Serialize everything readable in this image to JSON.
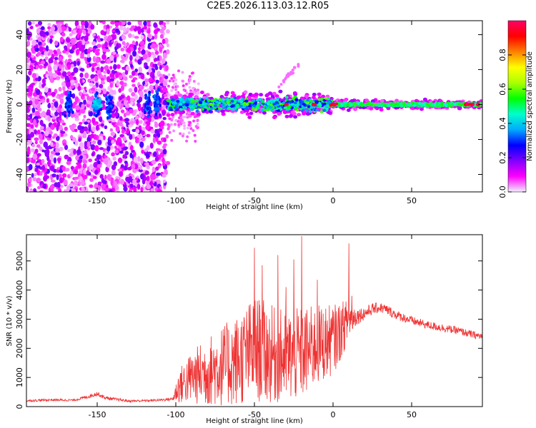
{
  "title": "C2E5.2026.113.03.12.R05",
  "colors": {
    "trace": "#ee3333",
    "frame": "#000000"
  },
  "chart_data": [
    {
      "type": "heatmap",
      "xlabel": "Height of straight line (km)",
      "ylabel": "Frequency (Hz)",
      "xlim": [
        -195,
        95
      ],
      "ylim": [
        -50,
        48
      ],
      "xticks": [
        -150,
        -100,
        -50,
        0,
        50
      ],
      "xtick_labels": [
        "-150",
        "-100",
        "-50",
        "0",
        "50"
      ],
      "yticks": [
        -40,
        -20,
        0,
        20,
        40
      ],
      "ytick_labels": [
        "-40",
        "-20",
        "0",
        "20",
        "40"
      ],
      "colorbar": {
        "label": "Normalized spectral amplitude",
        "range": [
          0,
          1
        ],
        "ticks": [
          0.0,
          0.2,
          0.4,
          0.6,
          0.8
        ],
        "tick_labels": [
          "0.0",
          "0.2",
          "0.4",
          "0.6",
          "0.8"
        ],
        "stops": [
          "#f0f0ff",
          "#ff00ff",
          "#8000ff",
          "#0000ff",
          "#00aaff",
          "#00ffcc",
          "#00ff00",
          "#aaff00",
          "#ffff00",
          "#ff8000",
          "#ff0000",
          "#ff0066"
        ]
      },
      "regions": [
        {
          "name": "diffuse noise",
          "x_range": [
            -195,
            -105
          ],
          "freq_range": [
            -50,
            48
          ],
          "amplitude": 0.12
        },
        {
          "name": "strong blob",
          "x": -150,
          "freq": 0,
          "amplitude": 0.3
        },
        {
          "name": "ridge",
          "x_range": [
            -105,
            95
          ],
          "freq": 0,
          "amplitude_start": 0.35,
          "amplitude_end": 0.45
        },
        {
          "name": "faint streak",
          "x_range": [
            -40,
            -20
          ],
          "freq_range": [
            5,
            25
          ],
          "amplitude": 0.08
        }
      ]
    },
    {
      "type": "line",
      "xlabel": "Height of straight line (km)",
      "ylabel": "SNR (10 * v/v)",
      "xlim": [
        -195,
        95
      ],
      "ylim": [
        0,
        5900
      ],
      "xticks": [
        -150,
        -100,
        -50,
        0,
        50
      ],
      "xtick_labels": [
        "-150",
        "-100",
        "-50",
        "0",
        "50"
      ],
      "yticks": [
        0,
        1000,
        2000,
        3000,
        4000,
        5000
      ],
      "ytick_labels": [
        "0",
        "1000",
        "2000",
        "3000",
        "4000",
        "5000"
      ],
      "series": [
        {
          "name": "SNR",
          "x": [
            -195,
            -180,
            -165,
            -155,
            -150,
            -145,
            -130,
            -115,
            -102,
            -98,
            -90,
            -80,
            -70,
            -60,
            -50,
            -45,
            -40,
            -30,
            -20,
            -10,
            0,
            5,
            10,
            15,
            20,
            25,
            30,
            35,
            40,
            50,
            60,
            70,
            80,
            90,
            95
          ],
          "y": [
            200,
            230,
            220,
            350,
            450,
            300,
            190,
            210,
            260,
            700,
            1000,
            1200,
            1400,
            1600,
            2000,
            1900,
            1800,
            1700,
            1800,
            2100,
            2300,
            2600,
            3000,
            3100,
            3200,
            3350,
            3400,
            3300,
            3150,
            2950,
            2800,
            2700,
            2600,
            2450,
            2400
          ],
          "spread": [
            40,
            40,
            40,
            60,
            80,
            60,
            40,
            40,
            60,
            600,
            900,
            1200,
            1400,
            1600,
            1800,
            1800,
            1700,
            1600,
            1600,
            1400,
            1200,
            1000,
            700,
            300,
            220,
            200,
            180,
            180,
            160,
            150,
            140,
            140,
            130,
            130,
            130
          ]
        }
      ],
      "spikes": [
        {
          "x": -50,
          "y": 5450
        },
        {
          "x": -45,
          "y": 4850
        },
        {
          "x": -35,
          "y": 5200
        },
        {
          "x": -30,
          "y": 4100
        },
        {
          "x": -25,
          "y": 5050
        },
        {
          "x": -20,
          "y": 5850
        },
        {
          "x": -10,
          "y": 4350
        },
        {
          "x": 10,
          "y": 5600
        },
        {
          "x": 12,
          "y": 3800
        }
      ]
    }
  ]
}
